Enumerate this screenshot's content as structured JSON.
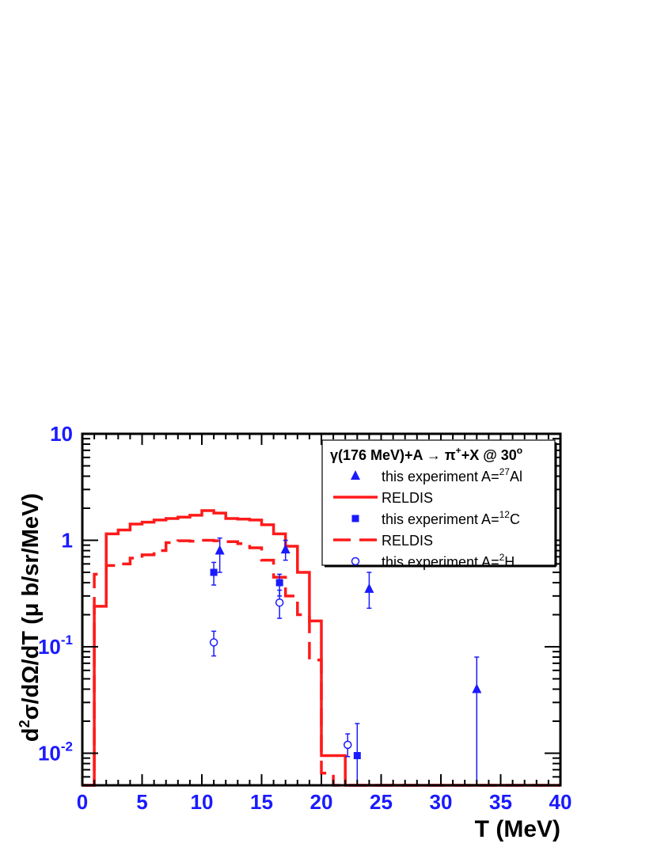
{
  "chart_data": {
    "type": "line",
    "title": "",
    "xlabel": "T (MeV)",
    "ylabel": "d²σ/dΩ/dT (μ b/sr/MeV)",
    "xlim": [
      0,
      40
    ],
    "ylim": [
      0.005,
      10
    ],
    "yscale": "log",
    "grid": false,
    "legend_position": "top-right",
    "x_ticks": [
      0,
      5,
      10,
      15,
      20,
      25,
      30,
      35,
      40
    ],
    "x_tick_labels": [
      "0",
      "5",
      "10",
      "15",
      "20",
      "25",
      "30",
      "35",
      "40"
    ],
    "y_ticks": [
      0.01,
      0.1,
      1,
      10
    ],
    "y_tick_labels": [
      {
        "base": "10",
        "exp": "-2"
      },
      {
        "base": "10",
        "exp": "-1"
      },
      {
        "base": "1",
        "exp": ""
      },
      {
        "base": "10",
        "exp": ""
      }
    ],
    "legend": {
      "header": {
        "pre": "γ(176 MeV)+A → π",
        "sup": "+",
        "mid": "+X @ 30",
        "sup2": "o"
      },
      "entries": [
        {
          "text_pre": "this experiment A=",
          "sup": "27",
          "text_post": "Al",
          "marker": "triangle"
        },
        {
          "text_pre": "RELDIS",
          "sup": "",
          "text_post": "",
          "marker": "solid-line"
        },
        {
          "text_pre": "this experiment A=",
          "sup": "12",
          "text_post": "C",
          "marker": "square"
        },
        {
          "text_pre": "RELDIS",
          "sup": "",
          "text_post": "",
          "marker": "dashed-line"
        },
        {
          "text_pre": "this experiment A=",
          "sup": "2",
          "text_post": "H",
          "marker": "open-circle"
        }
      ]
    },
    "colors": {
      "axis_labels": "#1a1aff",
      "data": "#1a1aff",
      "model": "#ff1a1a"
    },
    "series": [
      {
        "name": "RELDIS",
        "style": "solid",
        "kind": "histogram",
        "bin_edges": [
          0,
          1,
          2,
          3,
          4,
          5,
          6,
          7,
          8,
          9,
          10,
          11,
          12,
          13,
          14,
          15,
          16,
          17,
          18,
          19,
          20,
          21,
          22,
          23,
          40
        ],
        "values": [
          0.005,
          0.24,
          1.15,
          1.25,
          1.42,
          1.48,
          1.55,
          1.6,
          1.65,
          1.72,
          1.9,
          1.8,
          1.6,
          1.58,
          1.55,
          1.4,
          1.15,
          0.88,
          0.5,
          0.175,
          0.0095,
          0.0095,
          0.005,
          0.005
        ]
      },
      {
        "name": "RELDIS",
        "style": "dashed",
        "kind": "histogram",
        "bin_edges": [
          0,
          1,
          2,
          3,
          4,
          5,
          6,
          7,
          8,
          9,
          10,
          11,
          12,
          13,
          14,
          15,
          16,
          17,
          18,
          19,
          20,
          21,
          22,
          23,
          40
        ],
        "values": [
          0.005,
          0.48,
          0.58,
          0.6,
          0.68,
          0.73,
          0.8,
          0.95,
          0.99,
          0.98,
          1.0,
          0.99,
          0.97,
          0.93,
          0.85,
          0.65,
          0.45,
          0.3,
          0.2,
          0.075,
          0.0065,
          0.005,
          0.005,
          0.005
        ]
      },
      {
        "name": "this experiment A=27Al",
        "marker": "triangle",
        "points": [
          {
            "x": 11.5,
            "y": 0.8,
            "ylo": 0.5,
            "yhi": 1.05
          },
          {
            "x": 17.0,
            "y": 0.82,
            "ylo": 0.65,
            "yhi": 1.0
          },
          {
            "x": 24.0,
            "y": 0.35,
            "ylo": 0.23,
            "yhi": 0.5
          },
          {
            "x": 33.0,
            "y": 0.04,
            "ylo": 0.005,
            "yhi": 0.08
          }
        ]
      },
      {
        "name": "this experiment A=12C",
        "marker": "square",
        "points": [
          {
            "x": 11.0,
            "y": 0.5,
            "ylo": 0.38,
            "yhi": 0.62
          },
          {
            "x": 16.5,
            "y": 0.4,
            "ylo": 0.3,
            "yhi": 0.48
          },
          {
            "x": 23.0,
            "y": 0.0095,
            "ylo": 0.005,
            "yhi": 0.019
          }
        ]
      },
      {
        "name": "this experiment A=2H",
        "marker": "open-circle",
        "points": [
          {
            "x": 11.0,
            "y": 0.11,
            "ylo": 0.082,
            "yhi": 0.14
          },
          {
            "x": 16.5,
            "y": 0.26,
            "ylo": 0.185,
            "yhi": 0.34
          },
          {
            "x": 22.2,
            "y": 0.012,
            "ylo": 0.0093,
            "yhi": 0.0152
          }
        ]
      }
    ]
  }
}
